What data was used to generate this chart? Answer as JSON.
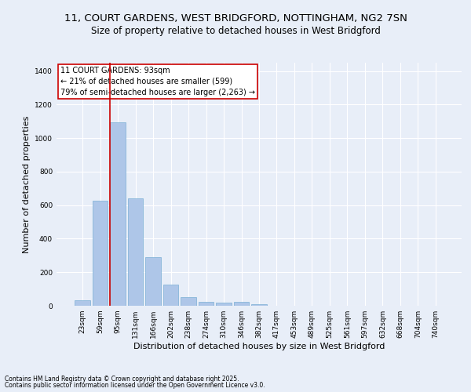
{
  "title_line1": "11, COURT GARDENS, WEST BRIDGFORD, NOTTINGHAM, NG2 7SN",
  "title_line2": "Size of property relative to detached houses in West Bridgford",
  "xlabel": "Distribution of detached houses by size in West Bridgford",
  "ylabel": "Number of detached properties",
  "categories": [
    "23sqm",
    "59sqm",
    "95sqm",
    "131sqm",
    "166sqm",
    "202sqm",
    "238sqm",
    "274sqm",
    "310sqm",
    "346sqm",
    "382sqm",
    "417sqm",
    "453sqm",
    "489sqm",
    "525sqm",
    "561sqm",
    "597sqm",
    "632sqm",
    "668sqm",
    "704sqm",
    "740sqm"
  ],
  "values": [
    35,
    625,
    1095,
    640,
    290,
    125,
    50,
    25,
    20,
    25,
    8,
    0,
    0,
    0,
    0,
    0,
    0,
    0,
    0,
    0,
    0
  ],
  "bar_color": "#aec6e8",
  "bar_edge_color": "#7aafd4",
  "vline_index": 2,
  "marker_label": "11 COURT GARDENS: 93sqm",
  "pct_smaller": 21,
  "pct_smaller_count": 599,
  "pct_larger": 79,
  "pct_larger_count": 2263,
  "annotation_box_color": "#cc0000",
  "vline_color": "#cc0000",
  "ylim": [
    0,
    1450
  ],
  "yticks": [
    0,
    200,
    400,
    600,
    800,
    1000,
    1200,
    1400
  ],
  "bg_color": "#e8eef8",
  "grid_color": "#ffffff",
  "footer_line1": "Contains HM Land Registry data © Crown copyright and database right 2025.",
  "footer_line2": "Contains public sector information licensed under the Open Government Licence v3.0.",
  "title_fontsize": 9.5,
  "subtitle_fontsize": 8.5,
  "tick_fontsize": 6.5,
  "label_fontsize": 8,
  "annotation_fontsize": 7,
  "footer_fontsize": 5.5
}
